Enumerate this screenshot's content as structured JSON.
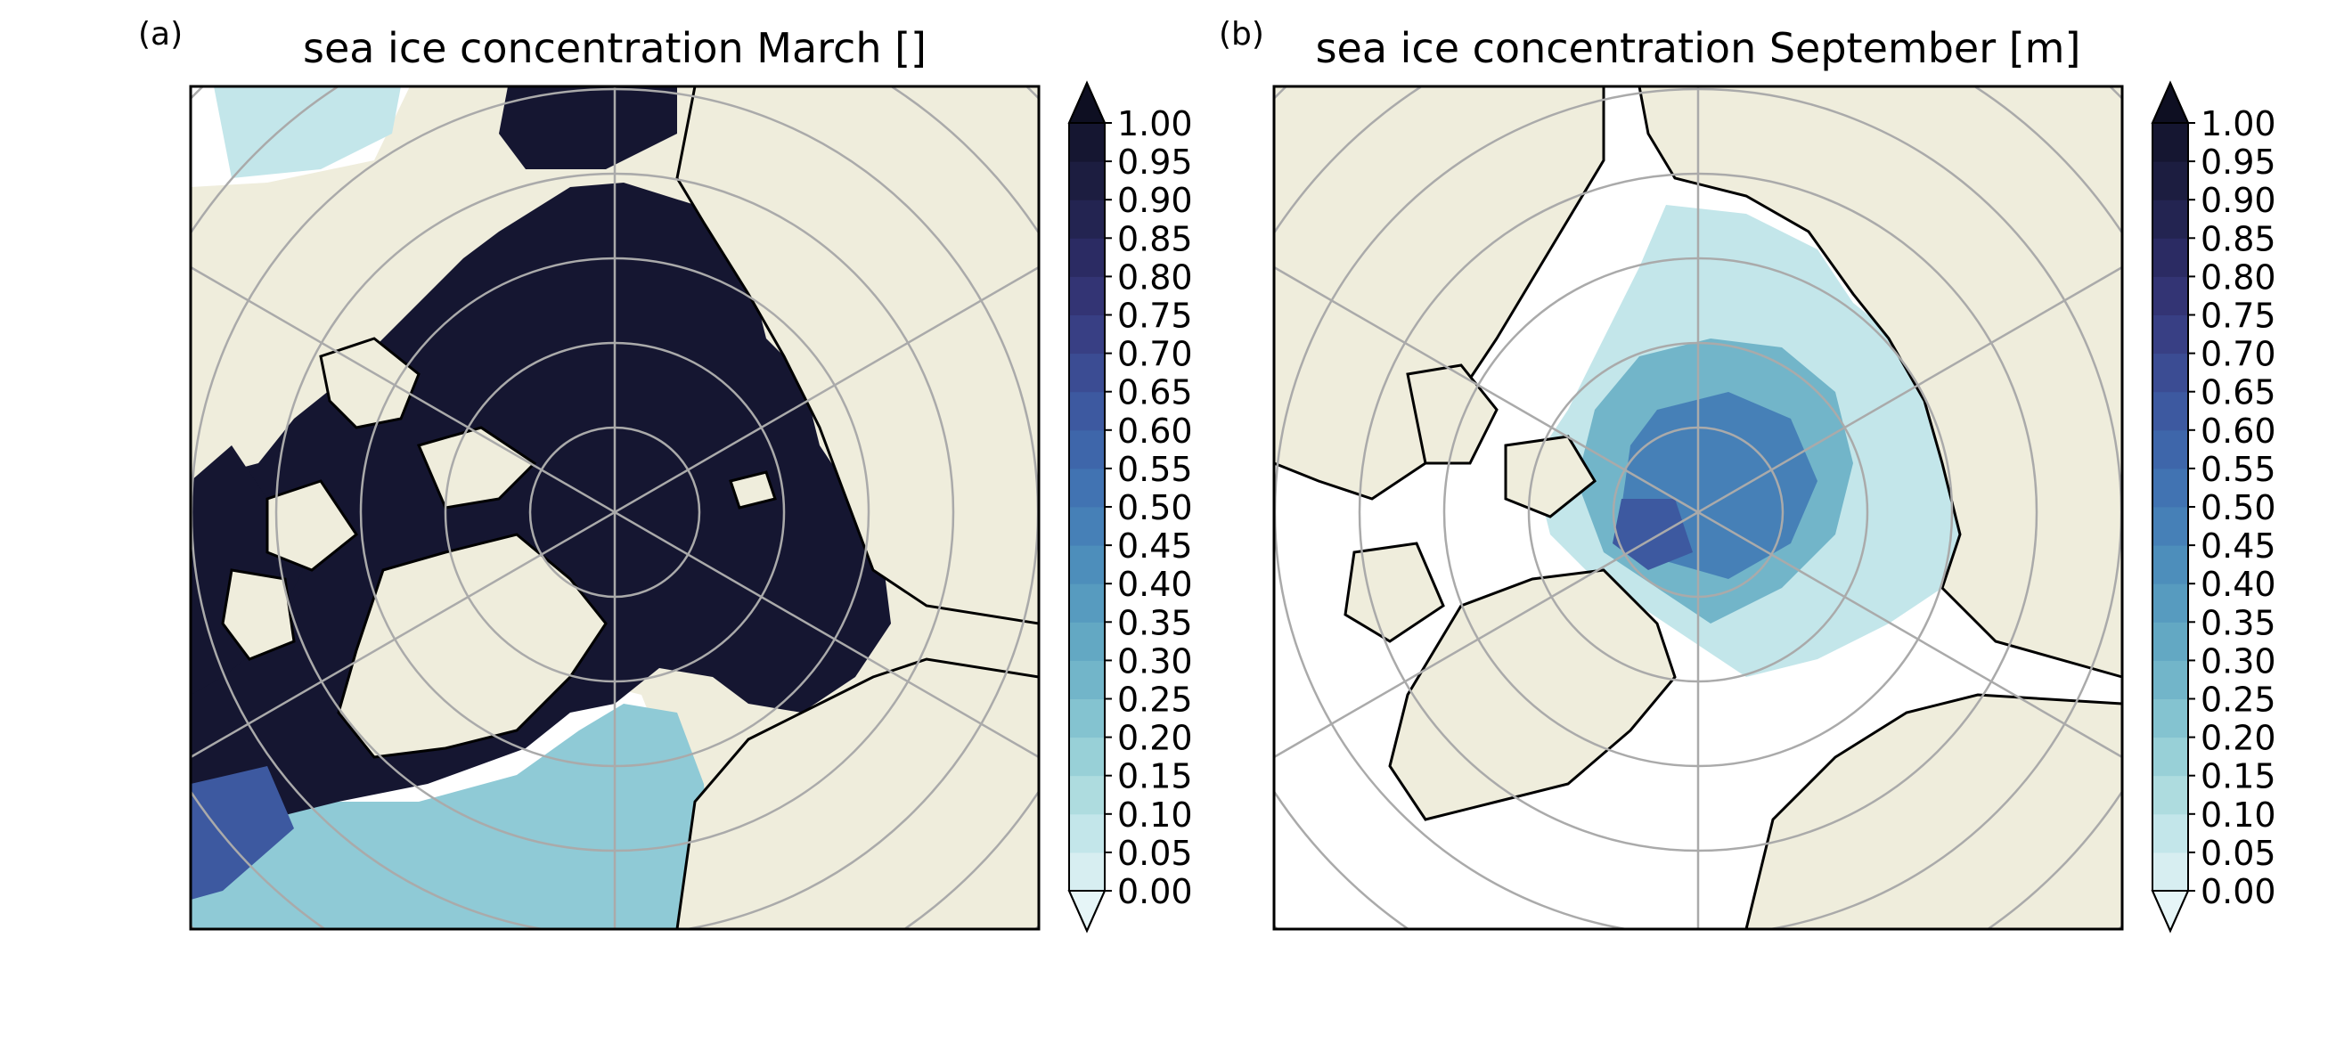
{
  "panels": [
    {
      "label": "(a)",
      "title": "sea ice concentration March []"
    },
    {
      "label": "(b)",
      "title": "sea ice concentration September [m]"
    }
  ],
  "colorbar": {
    "ticks": [
      "1.00",
      "0.95",
      "0.90",
      "0.85",
      "0.80",
      "0.75",
      "0.70",
      "0.65",
      "0.60",
      "0.55",
      "0.50",
      "0.45",
      "0.40",
      "0.35",
      "0.30",
      "0.25",
      "0.20",
      "0.15",
      "0.10",
      "0.05",
      "0.00"
    ],
    "extend": "both",
    "colormap_note": "light cyan (0.00) to dark navy (1.00)",
    "colors": [
      "#d7eef1",
      "#c3e6ea",
      "#aedcdf",
      "#98d0d7",
      "#84c3d0",
      "#72b5c9",
      "#63a8c3",
      "#579bbf",
      "#4d8ebb",
      "#4680b7",
      "#4173b2",
      "#3e66aa",
      "#3d59a0",
      "#3b4c93",
      "#383f84",
      "#333474",
      "#2b2b63",
      "#232451",
      "#1c1d40",
      "#151631"
    ],
    "extend_low_color": "#e6f5f7",
    "extend_high_color": "#0e0f22"
  },
  "map_style": {
    "land_color": "#efeddc",
    "ocean_color": "#ffffff",
    "gridline_color": "#aaaaaa",
    "coastline_color": "#000000"
  }
}
